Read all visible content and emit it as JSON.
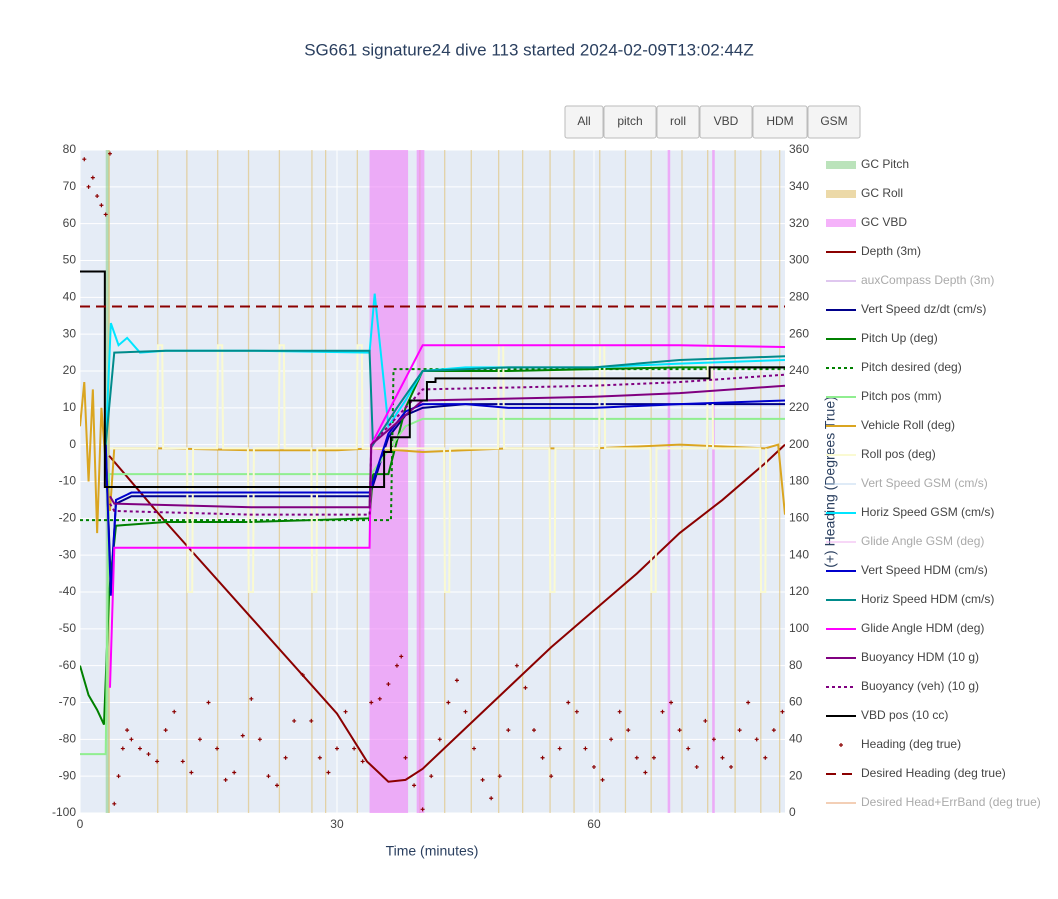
{
  "chart_data": {
    "type": "line",
    "title": "SG661 signature24 dive 113 started 2024-02-09T13:02:44Z",
    "xlabel": "Time (minutes)",
    "y2label": "(+) Heading (Degrees True)",
    "buttons": [
      "All",
      "pitch",
      "roll",
      "VBD",
      "HDM",
      "GSM"
    ],
    "xlim": [
      0,
      82.3
    ],
    "xticks": [
      0,
      30,
      60
    ],
    "ylim": [
      -100,
      80
    ],
    "yticks": [
      -100,
      -90,
      -80,
      -70,
      -60,
      -50,
      -40,
      -30,
      -20,
      -10,
      0,
      10,
      20,
      30,
      40,
      50,
      60,
      70,
      80
    ],
    "y2lim": [
      0,
      360
    ],
    "y2ticks": [
      0,
      20,
      40,
      60,
      80,
      100,
      120,
      140,
      160,
      180,
      200,
      220,
      240,
      260,
      280,
      300,
      320,
      340,
      360
    ],
    "grid": true,
    "series": [
      {
        "name": "GC Pitch",
        "color": "#8fd18f",
        "spans": [
          [
            3,
            3.4
          ]
        ]
      },
      {
        "name": "GC Roll",
        "color": "#e0c070",
        "spans": [
          [
            3.3,
            3.5
          ],
          [
            9,
            9.15
          ],
          [
            12.4,
            12.55
          ],
          [
            16,
            16.15
          ],
          [
            19.6,
            19.75
          ],
          [
            23.2,
            23.35
          ],
          [
            27,
            27.15
          ],
          [
            28.6,
            28.75
          ],
          [
            32.3,
            32.45
          ],
          [
            39.6,
            39.75
          ],
          [
            42.5,
            42.65
          ],
          [
            45.6,
            45.75
          ],
          [
            48.8,
            48.95
          ],
          [
            51.6,
            51.75
          ],
          [
            54.8,
            54.95
          ],
          [
            57.6,
            57.75
          ],
          [
            60.6,
            60.75
          ],
          [
            63.6,
            63.75
          ],
          [
            66.6,
            66.75
          ],
          [
            70.2,
            70.35
          ],
          [
            73.2,
            73.35
          ],
          [
            76.4,
            76.55
          ],
          [
            79.4,
            79.55
          ],
          [
            81.6,
            81.75
          ]
        ]
      },
      {
        "name": "GC VBD",
        "color": "#f080f8",
        "spans": [
          [
            33.8,
            38.3
          ],
          [
            39.3,
            40.2
          ],
          [
            68.6,
            68.9
          ],
          [
            73.8,
            74.1
          ]
        ]
      },
      {
        "name": "Depth (3m)",
        "color": "#8b0000",
        "x": [
          3.4,
          10,
          20,
          30,
          33.5,
          36,
          38,
          40,
          45,
          50,
          55,
          60,
          65,
          70,
          75,
          80,
          82.3
        ],
        "values": [
          -3,
          -21,
          -47,
          -73,
          -86,
          -91.5,
          -91,
          -88,
          -77,
          -66,
          -55,
          -45,
          -35,
          -24,
          -15,
          -5,
          0
        ]
      },
      {
        "name": "auxCompass Depth (3m)",
        "color": "#c090e0",
        "legendonly": true
      },
      {
        "name": "Vert Speed dz/dt (cm/s)",
        "color": "#00008b",
        "x": [
          3,
          3.6,
          4.2,
          6,
          20,
          33.8,
          36,
          38,
          40,
          45,
          50,
          60,
          70,
          82.3
        ],
        "values": [
          0,
          -38,
          -16,
          -14,
          -14,
          -14,
          2,
          8,
          10,
          11,
          11,
          11,
          11,
          11
        ]
      },
      {
        "name": "Pitch Up (deg)",
        "color": "#008000",
        "x": [
          0,
          1,
          2,
          2.8,
          3.4,
          4.2,
          10,
          20,
          33.8,
          34.2,
          36,
          38,
          40,
          50,
          60,
          70,
          82.3
        ],
        "values": [
          -60,
          -68,
          -72,
          -76,
          -40,
          -22,
          -21,
          -21,
          -20,
          -8,
          -8,
          10,
          20,
          20,
          20.5,
          21,
          21
        ]
      },
      {
        "name": "Pitch desired (deg)",
        "color": "#008000",
        "dash": "3,3",
        "x": [
          0,
          36.3,
          36.6,
          82.3
        ],
        "values": [
          -20.5,
          -20.5,
          20.5,
          20.5
        ]
      },
      {
        "name": "Pitch pos (mm)",
        "color": "#90ee90",
        "x": [
          0,
          3,
          3.4,
          34,
          38,
          40,
          82.3
        ],
        "values": [
          -84,
          -84,
          -8,
          -8,
          5,
          7,
          7
        ]
      },
      {
        "name": "Vehicle Roll (deg)",
        "color": "#daa520",
        "x": [
          0,
          0.5,
          1,
          1.5,
          2,
          2.5,
          3,
          3.5,
          4,
          10,
          20,
          30,
          34,
          40,
          50,
          60,
          70,
          80,
          81.5,
          82.3
        ],
        "values": [
          5,
          17,
          -10,
          15,
          -24,
          10,
          -5,
          -18,
          -1,
          -1,
          -1.5,
          -1.5,
          -1,
          -2,
          -1,
          -1,
          0,
          -1,
          0,
          -19
        ]
      },
      {
        "name": "Roll pos (deg)",
        "color": "#fafad2",
        "x": [
          3.5,
          9,
          9.1,
          9.6,
          9.7,
          12.5,
          12.6,
          13.1,
          13.2,
          16,
          16.1,
          16.6,
          16.7,
          19.6,
          19.7,
          20.2,
          20.3,
          23.2,
          23.3,
          23.8,
          23.9,
          27,
          27.1,
          27.6,
          27.7,
          32.3,
          32.4,
          32.9,
          33,
          42.5,
          42.6,
          43.1,
          43.2,
          48.8,
          48.9,
          49.4,
          49.5,
          54.8,
          54.9,
          55.4,
          55.5,
          60.6,
          60.7,
          61.2,
          61.3,
          66.6,
          66.7,
          67.2,
          67.3,
          73.2,
          73.3,
          73.8,
          73.9,
          79.4,
          79.5,
          80,
          80.1
        ],
        "values": [
          -1,
          -1,
          27,
          27,
          -1,
          -1,
          -40,
          -40,
          -1,
          -1,
          27,
          27,
          -1,
          -1,
          -40,
          -40,
          -1,
          -1,
          27,
          27,
          -1,
          -1,
          -40,
          -40,
          -1,
          -1,
          27,
          27,
          -1,
          -1,
          -40,
          -40,
          -1,
          -1,
          27,
          27,
          -1,
          -1,
          -40,
          -40,
          -1,
          -1,
          27,
          27,
          -1,
          -1,
          -40,
          -40,
          -1,
          -1,
          27,
          27,
          -1,
          -1,
          -40,
          -40,
          -1
        ]
      },
      {
        "name": "Vert Speed GSM (cm/s)",
        "color": "#c0d8f0",
        "legendonly": true
      },
      {
        "name": "Horiz Speed GSM (cm/s)",
        "color": "#00e5ff",
        "x": [
          3,
          3.6,
          4.5,
          5.5,
          7,
          10,
          20,
          33.8,
          34.4,
          36,
          38,
          40,
          45,
          50,
          60,
          70,
          82.3
        ],
        "values": [
          0,
          33,
          27,
          29,
          25,
          25.5,
          25.5,
          25,
          41,
          5,
          12,
          20,
          21,
          21,
          21,
          22,
          23
        ]
      },
      {
        "name": "Glide Angle GSM (deg)",
        "color": "#f0b0f0",
        "legendonly": true
      },
      {
        "name": "Vert Speed HDM (cm/s)",
        "color": "#0000cd",
        "x": [
          3,
          3.6,
          4.2,
          6,
          20,
          33.8,
          36,
          38,
          40,
          45,
          50,
          60,
          70,
          82.3
        ],
        "values": [
          0,
          -41,
          -15,
          -13,
          -13,
          -13,
          3,
          9,
          11,
          11,
          10,
          10,
          11,
          12
        ]
      },
      {
        "name": "Horiz Speed HDM (cm/s)",
        "color": "#008b8b",
        "x": [
          3,
          4,
          10,
          20,
          33.8,
          34.2,
          37,
          40,
          50,
          60,
          70,
          82.3
        ],
        "values": [
          0,
          25,
          25.5,
          25.5,
          25.5,
          0,
          10,
          20,
          21,
          21,
          23,
          24
        ]
      },
      {
        "name": "Glide Angle HDM (deg)",
        "color": "#ff00ff",
        "x": [
          3.5,
          4,
          10,
          20,
          33.8,
          34,
          40,
          50,
          60,
          70,
          82.3
        ],
        "values": [
          -66,
          -28,
          -28,
          -28,
          -28,
          0,
          27,
          27,
          27,
          27,
          26.5
        ]
      },
      {
        "name": "Buoyancy HDM (10 g)",
        "color": "#800080",
        "x": [
          3.5,
          4,
          20,
          33.8,
          34,
          40,
          50,
          60,
          70,
          82.3
        ],
        "values": [
          -14,
          -16,
          -17,
          -17,
          0,
          12,
          12.5,
          13,
          14,
          16
        ]
      },
      {
        "name": "Buoyancy (veh) (10 g)",
        "color": "#800080",
        "dash": "3,3",
        "x": [
          3.5,
          4,
          20,
          33.8,
          34,
          40,
          50,
          60,
          70,
          82.3
        ],
        "values": [
          -16,
          -18,
          -19,
          -19,
          0,
          15,
          15.5,
          16,
          17,
          19
        ]
      },
      {
        "name": "VBD pos (10 cc)",
        "color": "#000000",
        "shape": "hv",
        "x": [
          0,
          2.9,
          35.5,
          36.3,
          38.5,
          40.5,
          41.5,
          73.5,
          82.3
        ],
        "values": [
          47,
          -11.5,
          -2,
          2,
          12,
          17,
          18,
          21,
          21
        ]
      },
      {
        "name": "Heading (deg true)",
        "color": "#8b0000",
        "axis": "y2",
        "mode": "markers",
        "x": [
          0.5,
          1,
          1.5,
          2,
          2.5,
          3,
          3.5,
          4,
          4.5,
          5,
          5.5,
          6,
          7,
          8,
          9,
          10,
          11,
          12,
          13,
          14,
          15,
          16,
          17,
          18,
          19,
          20,
          21,
          22,
          23,
          24,
          25,
          26,
          27,
          28,
          29,
          30,
          31,
          32,
          33,
          34,
          35,
          36,
          37,
          37.5,
          38,
          39,
          40,
          41,
          42,
          43,
          44,
          45,
          46,
          47,
          48,
          49,
          50,
          51,
          52,
          53,
          54,
          55,
          56,
          57,
          58,
          59,
          60,
          61,
          62,
          63,
          64,
          65,
          66,
          67,
          68,
          69,
          70,
          71,
          72,
          73,
          74,
          75,
          76,
          77,
          78,
          79,
          80,
          81,
          82
        ],
        "values": [
          355,
          340,
          345,
          335,
          330,
          325,
          358,
          5,
          20,
          35,
          45,
          40,
          35,
          32,
          28,
          45,
          55,
          28,
          22,
          40,
          60,
          35,
          18,
          22,
          42,
          62,
          40,
          20,
          15,
          30,
          50,
          75,
          50,
          30,
          22,
          35,
          55,
          35,
          28,
          60,
          62,
          70,
          80,
          85,
          30,
          15,
          2,
          20,
          40,
          60,
          72,
          55,
          35,
          18,
          8,
          20,
          45,
          80,
          68,
          45,
          30,
          20,
          35,
          60,
          55,
          35,
          25,
          18,
          40,
          55,
          45,
          30,
          22,
          30,
          55,
          60,
          45,
          35,
          25,
          50,
          40,
          30,
          25,
          45,
          60,
          40,
          30,
          45,
          55
        ]
      },
      {
        "name": "Desired Heading (deg true)",
        "color": "#8b0000",
        "axis": "y2",
        "dash": "10,6",
        "x": [
          0,
          82.3
        ],
        "values": [
          275,
          275
        ]
      },
      {
        "name": "Desired Head+ErrBand (deg true)",
        "color": "#e8a070",
        "legendonly": true
      }
    ]
  }
}
